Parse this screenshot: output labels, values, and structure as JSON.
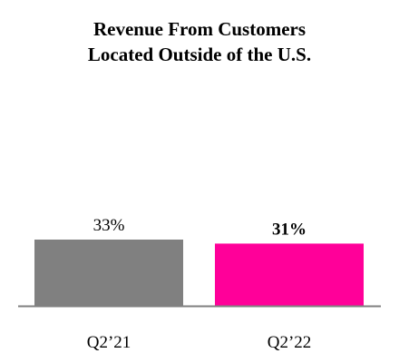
{
  "chart_data": {
    "type": "bar",
    "title_lines": [
      "Revenue From Customers",
      "Located Outside of the U.S."
    ],
    "categories": [
      "Q2’21",
      "Q2’22"
    ],
    "values": [
      33,
      31
    ],
    "value_labels": [
      "33%",
      "31%"
    ],
    "value_label_bold": [
      false,
      true
    ],
    "colors": [
      "#808080",
      "#ff0099"
    ],
    "baseline_color": "#808080",
    "ylim": [
      0,
      33
    ],
    "grid": false,
    "legend": "none"
  }
}
